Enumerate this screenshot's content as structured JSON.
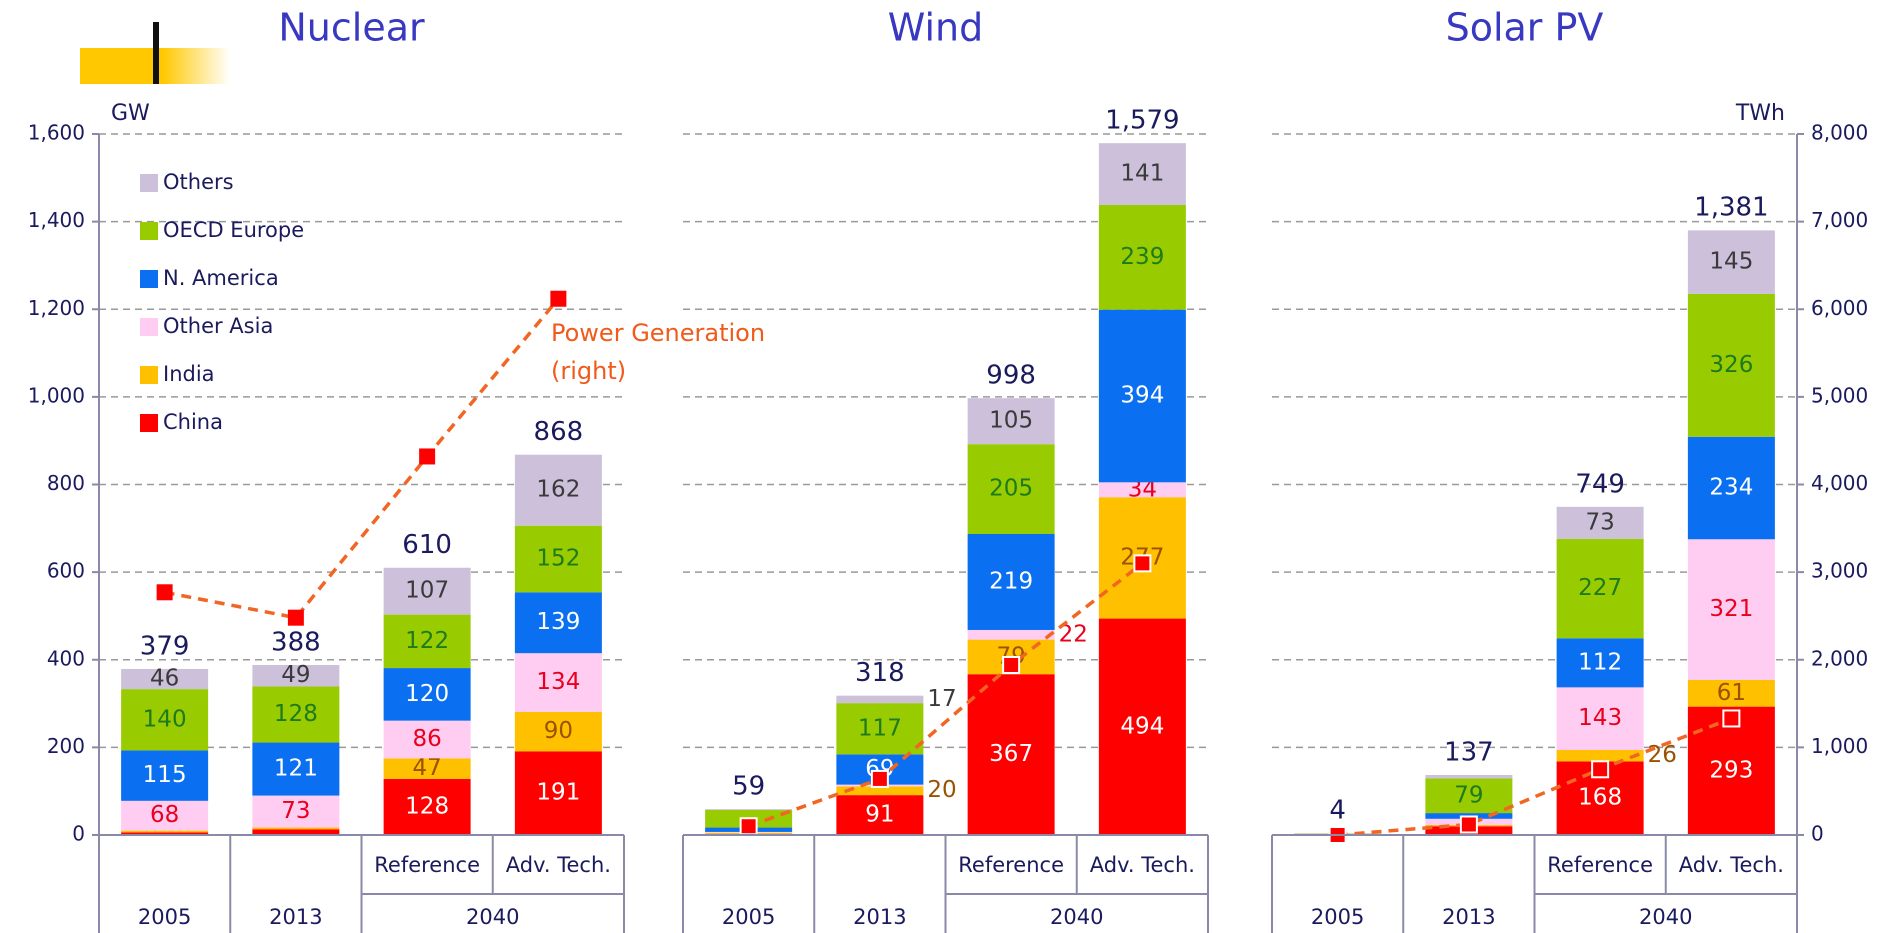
{
  "chart_data": [
    {
      "type": "bar",
      "title": "Nuclear",
      "y_label": "GW",
      "ylim": [
        0,
        1600
      ],
      "yticks": [
        0,
        200,
        400,
        600,
        800,
        {
          "value": 1000,
          "label": "1,000"
        },
        {
          "value": 1200,
          "label": "1,200"
        },
        {
          "value": 1400,
          "label": "1,400"
        },
        {
          "value": 1600,
          "label": "1,600"
        }
      ],
      "x_groups": [
        "2005",
        "2013",
        "2040"
      ],
      "categories": [
        null,
        null,
        "Reference",
        "Adv. Tech."
      ],
      "legend": "upper left",
      "grid": true,
      "series": [
        {
          "name": "China",
          "color": "#ff0000",
          "label_color": "#ffffff",
          "values": [
            6,
            13,
            128,
            191
          ],
          "value_labels": [
            null,
            null,
            "128",
            "191"
          ]
        },
        {
          "name": "India",
          "color": "#ffc000",
          "label_color": "#9a5200",
          "values": [
            4,
            4,
            47,
            90
          ],
          "value_labels": [
            null,
            null,
            "47",
            "90"
          ]
        },
        {
          "name": "Other Asia",
          "color": "#ffccf2",
          "label_color": "#e8001c",
          "values": [
            68,
            73,
            86,
            134
          ],
          "value_labels": [
            "68",
            "73",
            "86",
            "134"
          ]
        },
        {
          "name": "N. America",
          "color": "#0a6ff0",
          "label_color": "#ffffff",
          "values": [
            115,
            121,
            120,
            139
          ],
          "value_labels": [
            "115",
            "121",
            "120",
            "139"
          ]
        },
        {
          "name": "OECD Europe",
          "color": "#99cc00",
          "label_color": "#1e7a1e",
          "values": [
            140,
            128,
            122,
            152
          ],
          "value_labels": [
            "140",
            "128",
            "122",
            "152"
          ]
        },
        {
          "name": "Others",
          "color": "#ccc0da",
          "label_color": "#3a3a3a",
          "values": [
            46,
            49,
            107,
            162
          ],
          "value_labels": [
            "46",
            "49",
            "107",
            "162"
          ]
        },
        {
          "type": "line",
          "axis": "y2",
          "color": "#f26522",
          "values": [
            2770,
            2480,
            4320,
            6120
          ]
        }
      ],
      "totals": {
        "values": [
          379,
          388,
          610,
          868
        ],
        "value_labels": [
          "379",
          "388",
          "610",
          "868"
        ]
      },
      "annotation": [
        "Power Generation",
        "(right)"
      ]
    },
    {
      "type": "bar",
      "title": "Wind",
      "x_groups": [
        "2005",
        "2013",
        "2040"
      ],
      "categories": [
        null,
        null,
        "Reference",
        "Adv. Tech."
      ],
      "series": [
        {
          "values": [
            1,
            91,
            367,
            494
          ],
          "value_labels": [
            null,
            "91",
            "367",
            "494"
          ]
        },
        {
          "values": [
            4,
            20,
            79,
            277
          ],
          "value_labels": [
            null,
            "20",
            "79",
            "277"
          ]
        },
        {
          "values": [
            2,
            4,
            22,
            34
          ],
          "value_labels": [
            null,
            null,
            "22",
            "34"
          ]
        },
        {
          "values": [
            10,
            69,
            219,
            394
          ],
          "value_labels": [
            null,
            "69",
            "219",
            "394"
          ]
        },
        {
          "values": [
            40,
            117,
            205,
            239
          ],
          "value_labels": [
            null,
            "117",
            "205",
            "239"
          ]
        },
        {
          "values": [
            2,
            17,
            105,
            141
          ],
          "value_labels": [
            null,
            "17",
            "105",
            "141"
          ]
        },
        {
          "type": "line",
          "axis": "y2",
          "values": [
            100,
            640,
            1940,
            3100
          ]
        }
      ],
      "totals": {
        "values": [
          59,
          318,
          998,
          1579
        ],
        "value_labels": [
          "59",
          "318",
          "998",
          "1,579"
        ]
      }
    },
    {
      "type": "bar",
      "title": "Solar PV",
      "y2_label": "TWh",
      "y2lim": [
        0,
        8000
      ],
      "y2ticks": [
        0,
        {
          "value": 1000,
          "label": "1,000"
        },
        {
          "value": 2000,
          "label": "2,000"
        },
        {
          "value": 3000,
          "label": "3,000"
        },
        {
          "value": 4000,
          "label": "4,000"
        },
        {
          "value": 5000,
          "label": "5,000"
        },
        {
          "value": 6000,
          "label": "6,000"
        },
        {
          "value": 7000,
          "label": "7,000"
        },
        {
          "value": 8000,
          "label": "8,000"
        }
      ],
      "x_groups": [
        "2005",
        "2013",
        "2040"
      ],
      "categories": [
        null,
        null,
        "Reference",
        "Adv. Tech."
      ],
      "series": [
        {
          "values": [
            0,
            20,
            168,
            293
          ],
          "value_labels": [
            null,
            null,
            "168",
            "293"
          ]
        },
        {
          "values": [
            0,
            3,
            26,
            61
          ],
          "value_labels": [
            null,
            null,
            "26",
            "61"
          ]
        },
        {
          "values": [
            1,
            14,
            143,
            321
          ],
          "value_labels": [
            null,
            null,
            "143",
            "321"
          ]
        },
        {
          "values": [
            0,
            13,
            112,
            234
          ],
          "value_labels": [
            null,
            null,
            "112",
            "234"
          ]
        },
        {
          "values": [
            2,
            79,
            227,
            326
          ],
          "value_labels": [
            null,
            "79",
            "227",
            "326"
          ]
        },
        {
          "values": [
            1,
            8,
            73,
            145
          ],
          "value_labels": [
            null,
            null,
            "73",
            "145"
          ]
        },
        {
          "type": "line",
          "axis": "y2",
          "values": [
            0,
            120,
            750,
            1330
          ]
        }
      ],
      "totals": {
        "values": [
          4,
          137,
          749,
          1381
        ],
        "value_labels": [
          "4",
          "137",
          "749",
          "1,381"
        ]
      }
    }
  ]
}
